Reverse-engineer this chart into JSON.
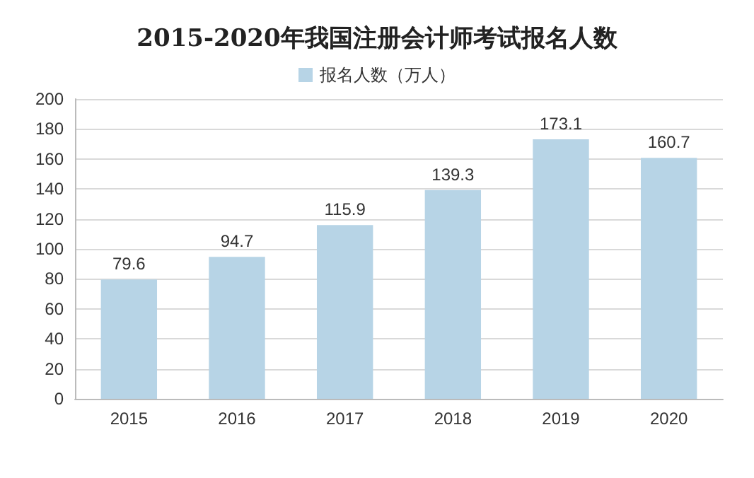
{
  "chart_data": {
    "type": "bar",
    "title": "2015-2020年我国注册会计师考试报名人数",
    "categories": [
      "2015",
      "2016",
      "2017",
      "2018",
      "2019",
      "2020"
    ],
    "series": [
      {
        "name": "报名人数（万人）",
        "color": "#b7d4e6",
        "values": [
          79.6,
          94.7,
          115.9,
          139.3,
          173.1,
          160.7
        ]
      }
    ],
    "ylim": [
      0,
      200
    ],
    "yticks": [
      0,
      20,
      40,
      60,
      80,
      100,
      120,
      140,
      160,
      180,
      200
    ],
    "grid": "y",
    "legend": "top",
    "data_labels": true
  }
}
